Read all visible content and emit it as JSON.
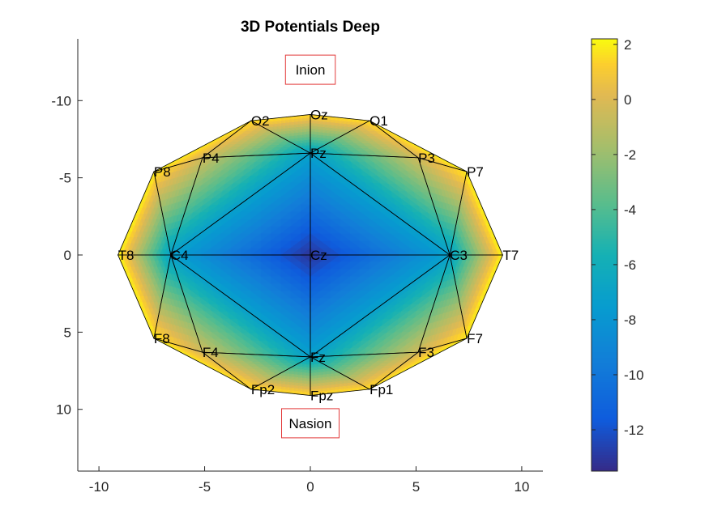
{
  "chart_data": {
    "type": "heatmap",
    "title": "3D Potentials Deep",
    "xlim": [
      -11,
      11
    ],
    "ylim": [
      -14,
      14
    ],
    "y_axis_reversed": true,
    "xticks": [
      -10,
      -5,
      0,
      5,
      10
    ],
    "yticks": [
      -10,
      -5,
      0,
      5,
      10
    ],
    "grid": false,
    "colormap": "parula",
    "colorbar": {
      "location": "right",
      "limits": [
        -13.5,
        2.2
      ],
      "ticks": [
        2,
        0,
        -2,
        -4,
        -6,
        -8,
        -10,
        -12
      ]
    },
    "electrodes": [
      {
        "name": "Cz",
        "x": 0,
        "y": 0,
        "value": -13.2
      },
      {
        "name": "Pz",
        "x": 0,
        "y": -6.6,
        "value": -7.2
      },
      {
        "name": "Fz",
        "x": 0,
        "y": 6.6,
        "value": -7.2
      },
      {
        "name": "C3",
        "x": 6.6,
        "y": 0,
        "value": -7.2
      },
      {
        "name": "C4",
        "x": -6.6,
        "y": 0,
        "value": -7.2
      },
      {
        "name": "Oz",
        "x": 0,
        "y": -9.1,
        "value": 1.6
      },
      {
        "name": "O1",
        "x": 2.8,
        "y": -8.7,
        "value": 1.7
      },
      {
        "name": "O2",
        "x": -2.8,
        "y": -8.7,
        "value": 1.7
      },
      {
        "name": "P3",
        "x": 5.1,
        "y": -6.3,
        "value": -0.4
      },
      {
        "name": "P4",
        "x": -5.1,
        "y": -6.3,
        "value": -0.4
      },
      {
        "name": "P7",
        "x": 7.4,
        "y": -5.4,
        "value": 2.0
      },
      {
        "name": "P8",
        "x": -7.4,
        "y": -5.4,
        "value": 2.0
      },
      {
        "name": "T7",
        "x": 9.1,
        "y": 0,
        "value": 2.1
      },
      {
        "name": "T8",
        "x": -9.1,
        "y": 0,
        "value": 2.1
      },
      {
        "name": "F3",
        "x": 5.1,
        "y": 6.3,
        "value": -0.4
      },
      {
        "name": "F4",
        "x": -5.1,
        "y": 6.3,
        "value": -0.4
      },
      {
        "name": "F7",
        "x": 7.4,
        "y": 5.4,
        "value": 2.0
      },
      {
        "name": "F8",
        "x": -7.4,
        "y": 5.4,
        "value": 2.0
      },
      {
        "name": "Fp1",
        "x": 2.8,
        "y": 8.7,
        "value": 1.7
      },
      {
        "name": "Fp2",
        "x": -2.8,
        "y": 8.7,
        "value": 1.7
      },
      {
        "name": "Fpz",
        "x": 0,
        "y": 9.1,
        "value": 1.6
      }
    ],
    "triangles": [
      [
        "Cz",
        "Pz",
        "C3"
      ],
      [
        "Cz",
        "C3",
        "Fz"
      ],
      [
        "Cz",
        "Fz",
        "C4"
      ],
      [
        "Cz",
        "C4",
        "Pz"
      ],
      [
        "Pz",
        "Oz",
        "O1"
      ],
      [
        "Pz",
        "O1",
        "P3"
      ],
      [
        "Pz",
        "P3",
        "C3"
      ],
      [
        "P3",
        "O1",
        "P7"
      ],
      [
        "P3",
        "P7",
        "C3"
      ],
      [
        "C3",
        "P7",
        "T7"
      ],
      [
        "C3",
        "T7",
        "F7"
      ],
      [
        "C3",
        "F7",
        "F3"
      ],
      [
        "C3",
        "F3",
        "Fz"
      ],
      [
        "Fz",
        "F3",
        "Fp1"
      ],
      [
        "F3",
        "F7",
        "Fp1"
      ],
      [
        "Fz",
        "Fp1",
        "Fpz"
      ],
      [
        "Pz",
        "O2",
        "Oz"
      ],
      [
        "Pz",
        "P4",
        "O2"
      ],
      [
        "Pz",
        "C4",
        "P4"
      ],
      [
        "P4",
        "P8",
        "O2"
      ],
      [
        "P4",
        "C4",
        "P8"
      ],
      [
        "C4",
        "T8",
        "P8"
      ],
      [
        "C4",
        "F8",
        "T8"
      ],
      [
        "C4",
        "F4",
        "F8"
      ],
      [
        "C4",
        "Fz",
        "F4"
      ],
      [
        "Fz",
        "Fp2",
        "F4"
      ],
      [
        "F4",
        "Fp2",
        "F8"
      ],
      [
        "Fz",
        "Fpz",
        "Fp2"
      ]
    ],
    "annotations": [
      {
        "text": "Inion",
        "x": 0,
        "y": -12
      },
      {
        "text": "Nasion",
        "x": 0,
        "y": 10.9
      }
    ],
    "colors": {
      "annotation_box": "#e23b3b",
      "mesh_lines": "#000000",
      "axis": "#262626"
    }
  }
}
